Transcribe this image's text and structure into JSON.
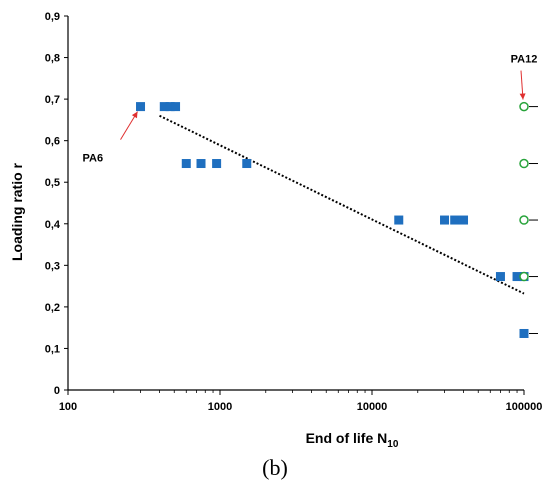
{
  "chart_data": {
    "type": "scatter",
    "xlabel_main": "End of life N",
    "xlabel_sub": "10",
    "ylabel": "Loading ratio r",
    "xscale": "log",
    "xlim": [
      100,
      100000
    ],
    "ylim": [
      0,
      0.9
    ],
    "x_ticks": [
      "100",
      "1000",
      "10000",
      "100000"
    ],
    "y_ticks": [
      "0",
      "0,1",
      "0,2",
      "0,3",
      "0,4",
      "0,5",
      "0,6",
      "0,7",
      "0,8",
      "0,9"
    ],
    "grid": false,
    "colors": {
      "pa6": "#1f6fbf",
      "pa12": "#27a33a",
      "trend": "#000000",
      "arrow": "#e03030"
    },
    "series": [
      {
        "name": "PA6",
        "marker": "filled-square",
        "points": [
          [
            300,
            0.682
          ],
          [
            430,
            0.682
          ],
          [
            470,
            0.682
          ],
          [
            510,
            0.682
          ],
          [
            600,
            0.545
          ],
          [
            750,
            0.545
          ],
          [
            950,
            0.545
          ],
          [
            1500,
            0.545
          ],
          [
            15000,
            0.409
          ],
          [
            30000,
            0.409
          ],
          [
            35000,
            0.409
          ],
          [
            40000,
            0.409
          ],
          [
            70000,
            0.273
          ],
          [
            90000,
            0.273
          ],
          [
            100000,
            0.273
          ],
          [
            100000,
            0.136
          ]
        ]
      },
      {
        "name": "PA12",
        "marker": "open-circle",
        "points": [
          [
            100000,
            0.682
          ],
          [
            100000,
            0.545
          ],
          [
            100000,
            0.409
          ],
          [
            100000,
            0.273
          ]
        ],
        "runout_levels": [
          0.682,
          0.545,
          0.409,
          0.273,
          0.136
        ]
      }
    ],
    "trendline": {
      "style": "dotted",
      "from": [
        400,
        0.66
      ],
      "to": [
        100000,
        0.232
      ]
    },
    "annotations": [
      {
        "id": "pa6",
        "text": "PA6",
        "arrow_to": [
          300,
          0.682
        ]
      },
      {
        "id": "pa12",
        "text": "PA12",
        "arrow_to": [
          100000,
          0.682
        ]
      }
    ]
  },
  "caption": "(b)"
}
